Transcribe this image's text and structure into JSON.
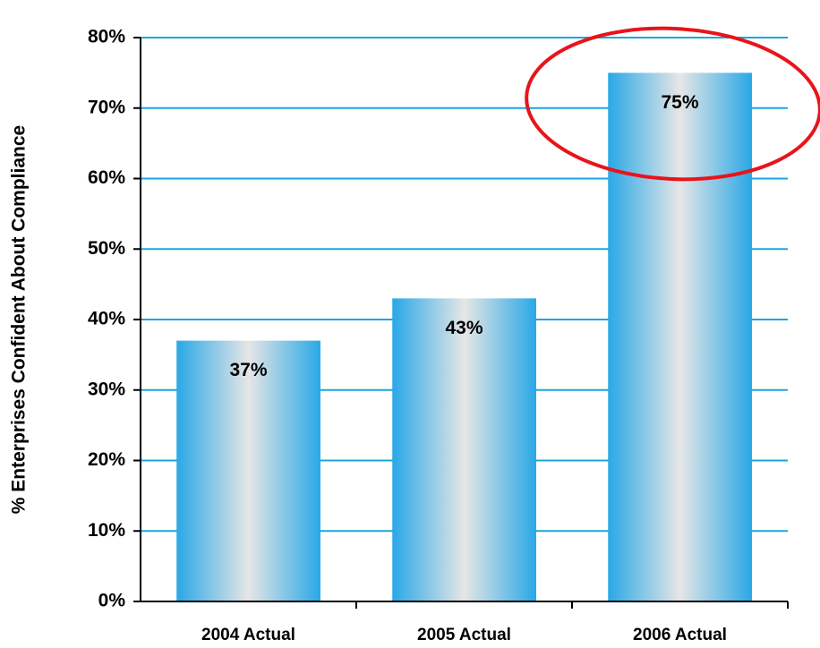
{
  "chart_data": {
    "type": "bar",
    "y_label": "% Enterprises Confident About Compliance",
    "categories": [
      "2004 Actual",
      "2005 Actual",
      "2006 Actual"
    ],
    "values": [
      37,
      43,
      75
    ],
    "value_labels": [
      "37%",
      "43%",
      "75%"
    ],
    "color": "#29a8e6",
    "ylim": [
      0,
      80
    ],
    "yticks": [
      {
        "value": 0,
        "label": "0%"
      },
      {
        "value": 10,
        "label": "10%"
      },
      {
        "value": 20,
        "label": "20%"
      },
      {
        "value": 30,
        "label": "30%"
      },
      {
        "value": 40,
        "label": "40%"
      },
      {
        "value": 50,
        "label": "50%"
      },
      {
        "value": 60,
        "label": "60%"
      },
      {
        "value": 70,
        "label": "70%"
      },
      {
        "value": 80,
        "label": "80%"
      }
    ],
    "grid": true
  }
}
